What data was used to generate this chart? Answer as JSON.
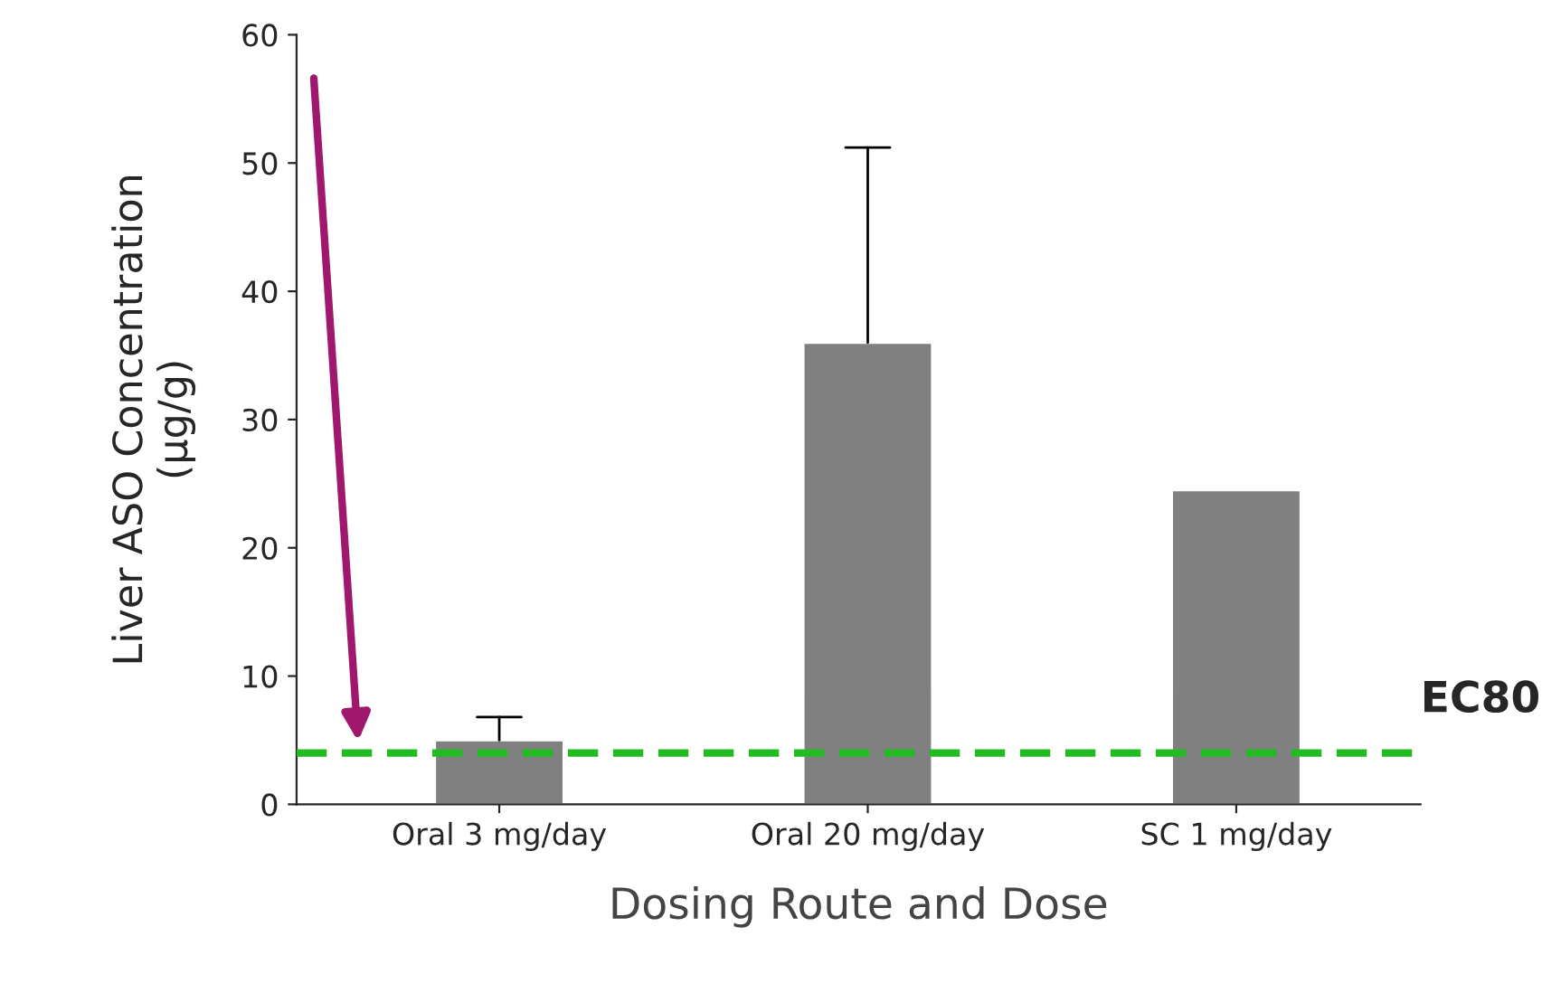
{
  "chart_data": {
    "type": "bar",
    "xlabel": "Dosing Route and Dose",
    "ylabel": "Liver ASO Concentration\n(µg/g)",
    "categories": [
      "Oral 3 mg/day",
      "Oral 20 mg/day",
      "SC 1 mg/day"
    ],
    "values": [
      5,
      36,
      24.5
    ],
    "color": "#808080",
    "errors": [
      [
        5,
        6.8
      ],
      [
        36,
        51.2
      ],
      null
    ],
    "ylim": [
      0,
      60
    ],
    "yticks": [
      0,
      10,
      20,
      30,
      40,
      50,
      60
    ],
    "grid": false,
    "ref_lines": [
      {
        "axis": "y",
        "value": 4,
        "label": "EC80",
        "color": "#22bb22",
        "line_style": "dashed"
      }
    ]
  }
}
